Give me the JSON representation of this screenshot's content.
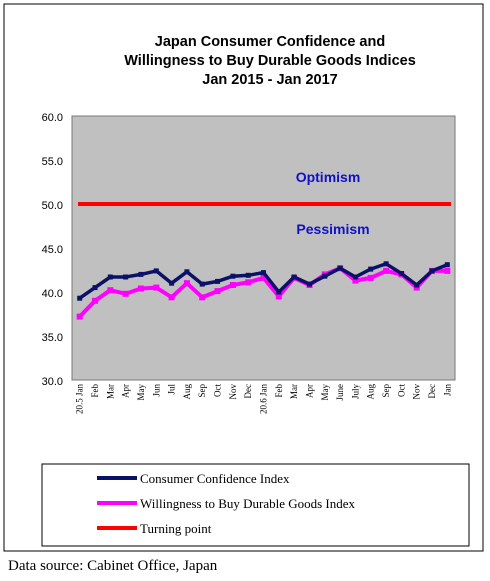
{
  "chart_data": {
    "type": "line",
    "title_lines": [
      "Japan Consumer Confidence and",
      "Willingness to Buy Durable Goods Indices",
      "Jan 2015 - Jan 2017"
    ],
    "x_labels": [
      "20.5 Jan",
      "Feb",
      "Mar",
      "Apr",
      "May",
      "Jun",
      "Jul",
      "Aug",
      "Sep",
      "Oct",
      "Nov",
      "Dec",
      "20.6 Jan",
      "Feb",
      "Mar",
      "Apr",
      "May",
      "June",
      "July",
      "Aug",
      "Sep",
      "Oct",
      "Nov",
      "Dec",
      "Jan"
    ],
    "y_ticks": [
      "60.0",
      "55.0",
      "50.0",
      "45.0",
      "40.0",
      "35.0",
      "30.0"
    ],
    "ylim": [
      30,
      60
    ],
    "series": [
      {
        "name": "Consumer Confidence Index",
        "color": "#0b1166",
        "values": [
          39.3,
          40.5,
          41.7,
          41.7,
          42.0,
          42.4,
          41.0,
          42.3,
          40.9,
          41.2,
          41.8,
          41.9,
          42.2,
          40.0,
          41.7,
          40.9,
          41.8,
          42.7,
          41.7,
          42.6,
          43.2,
          42.1,
          40.8,
          42.4,
          43.1
        ]
      },
      {
        "name": "Willingness to Buy Durable Goods Index",
        "color": "#ff00ff",
        "values": [
          37.2,
          39.0,
          40.2,
          39.8,
          40.4,
          40.5,
          39.4,
          41.0,
          39.4,
          40.1,
          40.8,
          41.1,
          41.6,
          39.5,
          41.6,
          40.8,
          42.0,
          42.7,
          41.3,
          41.6,
          42.4,
          42.0,
          40.5,
          42.4,
          42.4
        ]
      },
      {
        "name": "Turning point",
        "color": "#ff0000",
        "values": [
          50,
          50,
          50,
          50,
          50,
          50,
          50,
          50,
          50,
          50,
          50,
          50,
          50,
          50,
          50,
          50,
          50,
          50,
          50,
          50,
          50,
          50,
          50,
          50,
          50
        ]
      }
    ],
    "annotations": [
      "Optimism",
      "Pessimism"
    ],
    "grid": false,
    "legend_placement": "bottom"
  },
  "source_text": "Data source: Cabinet Office, Japan"
}
